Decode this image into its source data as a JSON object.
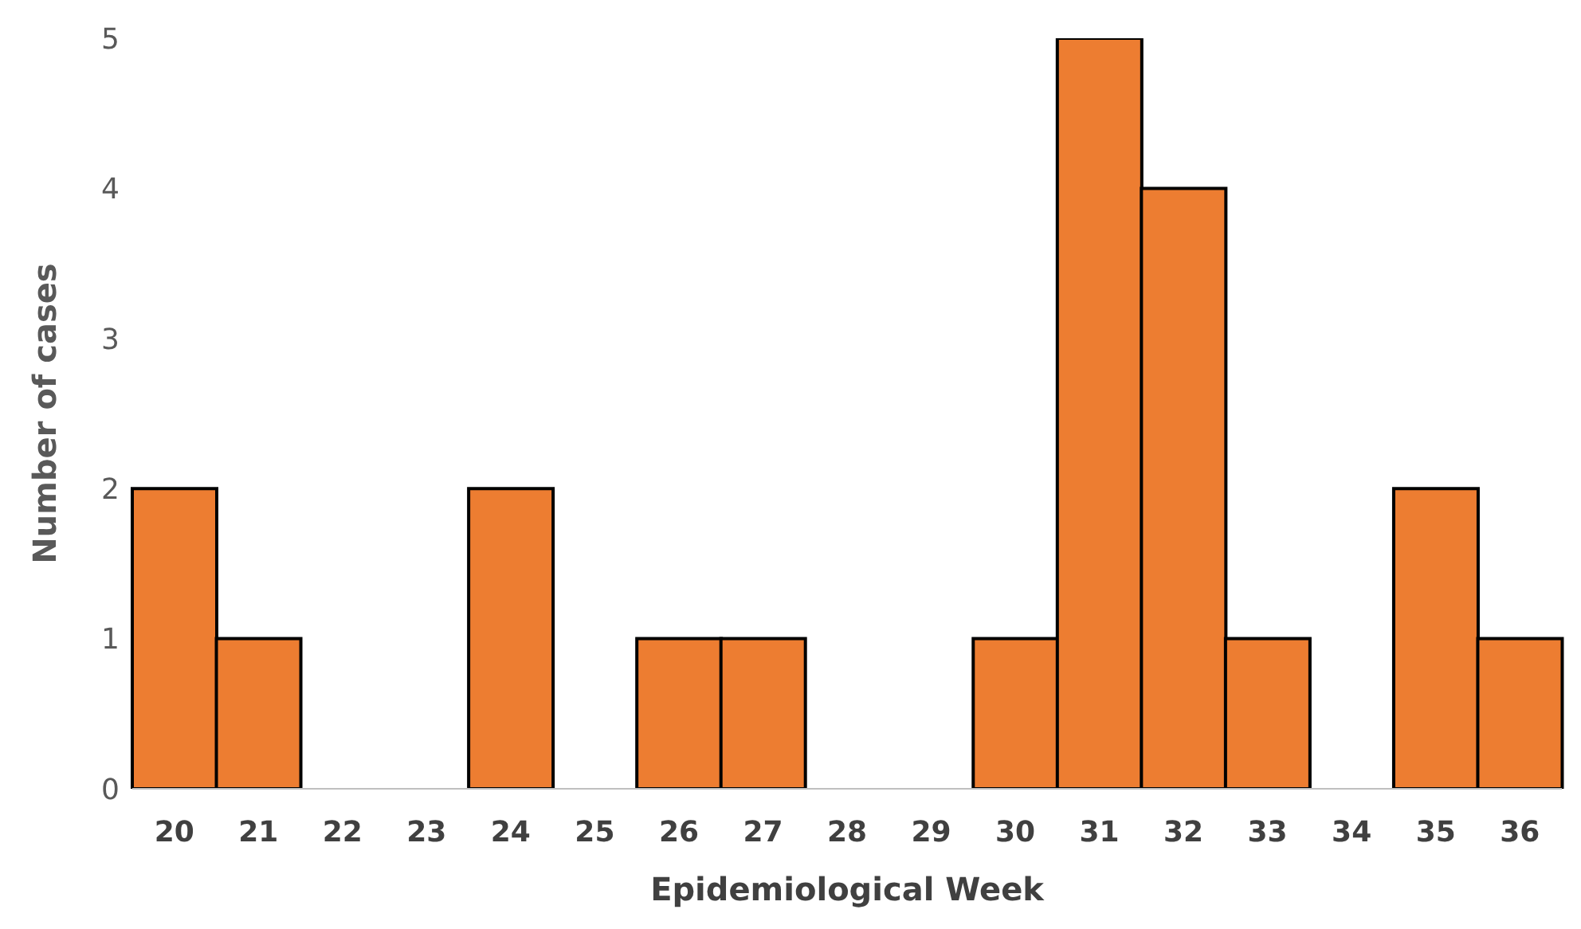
{
  "chart_data": {
    "type": "bar",
    "xlabel": "Epidemiological Week",
    "ylabel": "Number of  cases",
    "categories": [
      "20",
      "21",
      "22",
      "23",
      "24",
      "25",
      "26",
      "27",
      "28",
      "29",
      "30",
      "31",
      "32",
      "33",
      "34",
      "35",
      "36"
    ],
    "values": [
      2,
      1,
      0,
      0,
      2,
      0,
      1,
      1,
      0,
      0,
      1,
      5,
      4,
      1,
      0,
      2,
      1
    ],
    "color": "#ed7d31",
    "ylim": [
      0,
      5
    ],
    "yticks": [
      0,
      1,
      2,
      3,
      4,
      5
    ],
    "grid": false,
    "legend": false
  }
}
